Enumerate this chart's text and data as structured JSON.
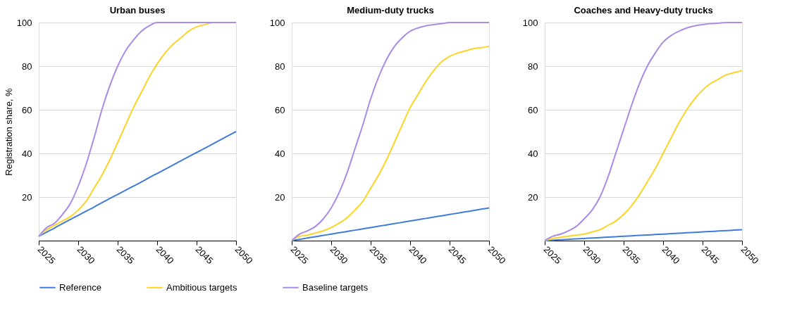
{
  "chart_data": [
    {
      "type": "line",
      "title": "Urban buses",
      "ylabel": "Registration share, %",
      "x": [
        2025,
        2026,
        2027,
        2028,
        2029,
        2030,
        2031,
        2032,
        2033,
        2034,
        2035,
        2036,
        2037,
        2038,
        2039,
        2040,
        2041,
        2042,
        2043,
        2044,
        2045,
        2046,
        2047,
        2048,
        2049,
        2050
      ],
      "xlim": [
        2025,
        2050
      ],
      "xticks": [
        2025,
        2030,
        2035,
        2040,
        2045,
        2050
      ],
      "ylim": [
        0,
        100
      ],
      "yticks": [
        20,
        40,
        60,
        80,
        100
      ],
      "grid": "y",
      "legend": "bottom",
      "series": [
        {
          "name": "Reference",
          "color": "#3f7bd9",
          "values": [
            2,
            3.9,
            5.8,
            7.8,
            9.7,
            11.6,
            13.5,
            15.4,
            17.4,
            19.3,
            21.2,
            23.1,
            25,
            26.9,
            28.9,
            30.8,
            32.7,
            34.6,
            36.6,
            38.5,
            40.4,
            42.3,
            44.2,
            46.2,
            48.1,
            50
          ]
        },
        {
          "name": "Ambitious targets",
          "color": "#fdd326",
          "values": [
            2,
            5,
            7,
            9,
            11,
            14,
            18,
            24,
            30,
            37,
            45,
            53,
            61,
            68,
            75,
            81,
            86,
            90,
            93,
            96,
            98,
            99,
            100,
            null,
            null,
            null
          ]
        },
        {
          "name": "Baseline targets",
          "color": "#a98be8",
          "values": [
            2,
            6,
            8,
            12,
            17,
            25,
            35,
            47,
            60,
            71,
            80,
            87,
            92,
            96,
            98.5,
            100,
            100,
            100,
            100,
            100,
            100,
            100,
            100,
            100,
            100,
            100
          ]
        }
      ]
    },
    {
      "type": "line",
      "title": "Medium-duty trucks",
      "x": [
        2025,
        2026,
        2027,
        2028,
        2029,
        2030,
        2031,
        2032,
        2033,
        2034,
        2035,
        2036,
        2037,
        2038,
        2039,
        2040,
        2041,
        2042,
        2043,
        2044,
        2045,
        2046,
        2047,
        2048,
        2049,
        2050
      ],
      "xlim": [
        2025,
        2050
      ],
      "xticks": [
        2025,
        2030,
        2035,
        2040,
        2045,
        2050
      ],
      "ylim": [
        0,
        100
      ],
      "yticks": [
        20,
        40,
        60,
        80,
        100
      ],
      "grid": "y",
      "legend": "bottom",
      "series": [
        {
          "name": "Reference",
          "color": "#3f7bd9",
          "values": [
            0,
            0.6,
            1.2,
            1.8,
            2.4,
            3,
            3.6,
            4.2,
            4.8,
            5.4,
            6,
            6.6,
            7.2,
            7.8,
            8.4,
            9,
            9.6,
            10.2,
            10.8,
            11.4,
            12,
            12.6,
            13.2,
            13.8,
            14.4,
            15
          ]
        },
        {
          "name": "Ambitious targets",
          "color": "#fdd326",
          "values": [
            0,
            2,
            2.5,
            3.5,
            4.5,
            6,
            8,
            10.5,
            14,
            18,
            24,
            30,
            37,
            45,
            53,
            61,
            67,
            73,
            78,
            82,
            84.5,
            86,
            87,
            88,
            88.5,
            89
          ]
        },
        {
          "name": "Baseline targets",
          "color": "#a98be8",
          "values": [
            0,
            3,
            4.5,
            6.5,
            10,
            15,
            22,
            31,
            42,
            53,
            65,
            75,
            83,
            89,
            93,
            96,
            97.5,
            98.5,
            99,
            99.5,
            100,
            100,
            100,
            100,
            100,
            100
          ]
        }
      ]
    },
    {
      "type": "line",
      "title": "Coaches and Heavy-duty trucks",
      "x": [
        2025,
        2026,
        2027,
        2028,
        2029,
        2030,
        2031,
        2032,
        2033,
        2034,
        2035,
        2036,
        2037,
        2038,
        2039,
        2040,
        2041,
        2042,
        2043,
        2044,
        2045,
        2046,
        2047,
        2048,
        2049,
        2050
      ],
      "xlim": [
        2025,
        2050
      ],
      "xticks": [
        2025,
        2030,
        2035,
        2040,
        2045,
        2050
      ],
      "ylim": [
        0,
        100
      ],
      "yticks": [
        20,
        40,
        60,
        80,
        100
      ],
      "grid": "y",
      "legend": "bottom",
      "series": [
        {
          "name": "Reference",
          "color": "#3f7bd9",
          "values": [
            0,
            0.2,
            0.4,
            0.6,
            0.8,
            1,
            1.2,
            1.4,
            1.6,
            1.8,
            2,
            2.2,
            2.4,
            2.6,
            2.8,
            3,
            3.2,
            3.4,
            3.6,
            3.8,
            4,
            4.2,
            4.4,
            4.6,
            4.8,
            5
          ]
        },
        {
          "name": "Ambitious targets",
          "color": "#fdd326",
          "values": [
            0,
            1,
            1.5,
            2,
            2.5,
            3,
            4,
            5,
            7,
            9,
            12,
            16,
            21,
            27,
            33,
            40,
            47,
            54,
            60,
            65,
            69,
            72,
            74,
            76,
            77,
            78
          ]
        },
        {
          "name": "Baseline targets",
          "color": "#a98be8",
          "values": [
            0,
            2,
            3,
            4.5,
            6.5,
            10,
            14,
            20,
            29,
            40,
            51,
            62,
            72,
            80,
            86,
            91,
            94,
            96,
            97.5,
            98.5,
            99,
            99.5,
            99.7,
            100,
            100,
            100
          ]
        }
      ]
    }
  ]
}
